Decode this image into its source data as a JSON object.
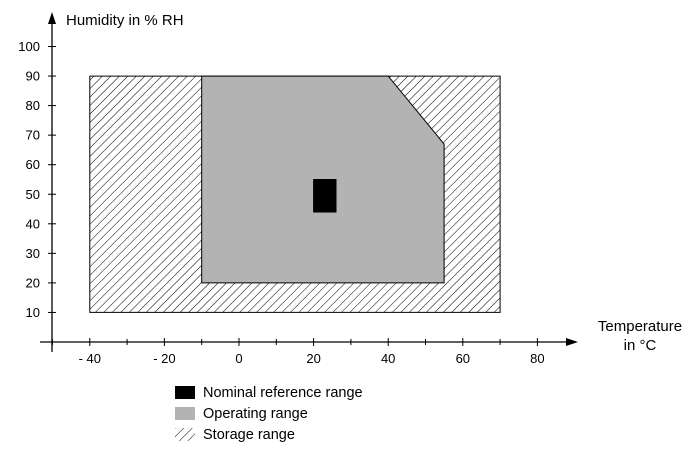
{
  "chart_data": {
    "type": "area",
    "ylabel": "Humidity in % RH",
    "xlabel_lines": [
      "Temperature",
      "in °C"
    ],
    "xlim": [
      -50,
      90
    ],
    "ylim": [
      0,
      105
    ],
    "x_ticks": [
      -40,
      -20,
      0,
      20,
      40,
      60,
      80
    ],
    "x_tick_labels": [
      "- 40",
      "- 20",
      "0",
      "20",
      "40",
      "60",
      "80"
    ],
    "y_ticks": [
      10,
      20,
      30,
      40,
      50,
      60,
      70,
      80,
      90,
      100
    ],
    "y_tick_labels": [
      "10",
      "20",
      "30",
      "40",
      "50",
      "60",
      "70",
      "80",
      "90",
      "100"
    ],
    "series": [
      {
        "name": "Storage range",
        "fill": "hatch",
        "polygon": [
          [
            -40,
            10
          ],
          [
            70,
            10
          ],
          [
            70,
            90
          ],
          [
            -40,
            90
          ]
        ]
      },
      {
        "name": "Operating range",
        "fill": "#b3b3b3",
        "polygon": [
          [
            -10,
            20
          ],
          [
            55,
            20
          ],
          [
            55,
            67
          ],
          [
            40,
            90
          ],
          [
            -10,
            90
          ]
        ]
      },
      {
        "name": "Nominal reference range",
        "fill": "#000000",
        "polygon": [
          [
            20,
            44
          ],
          [
            26,
            44
          ],
          [
            26,
            55
          ],
          [
            20,
            55
          ]
        ]
      }
    ],
    "legend": {
      "position": "bottom",
      "items": [
        {
          "label": "Nominal reference range",
          "swatch": "solid-black"
        },
        {
          "label": "Operating range",
          "swatch": "solid-gray"
        },
        {
          "label": "Storage range",
          "swatch": "hatch"
        }
      ]
    },
    "grid": false
  },
  "colors": {
    "operating": "#b3b3b3",
    "nominal": "#000000",
    "hatch": "#000000",
    "axis": "#000000"
  }
}
